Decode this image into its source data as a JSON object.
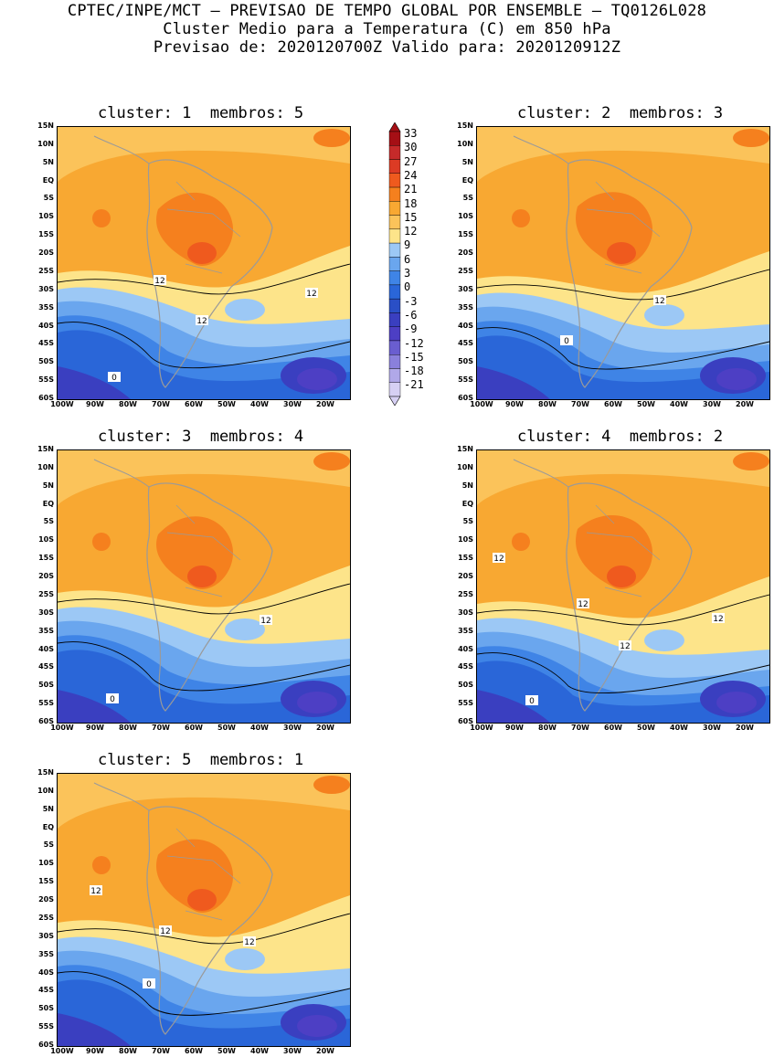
{
  "header": {
    "line1": "CPTEC/INPE/MCT – PREVISAO DE TEMPO GLOBAL POR ENSEMBLE – TQ0126L028",
    "line2": "Cluster Medio para a Temperatura (C) em 850 hPa",
    "line3": "Previsao de: 2020120700Z   Valido para: 2020120912Z"
  },
  "panels": [
    {
      "title": "cluster: 1  membros: 5",
      "contour_labels": [
        "12",
        "12",
        "12",
        "0"
      ]
    },
    {
      "title": "cluster: 2  membros: 3",
      "contour_labels": [
        "12",
        "0"
      ]
    },
    {
      "title": "cluster: 3  membros: 4",
      "contour_labels": [
        "12",
        "0"
      ]
    },
    {
      "title": "cluster: 4  membros: 2",
      "contour_labels": [
        "12",
        "12",
        "12",
        "12",
        "0"
      ]
    },
    {
      "title": "cluster: 5  membros: 1",
      "contour_labels": [
        "12",
        "12",
        "12",
        "0"
      ]
    }
  ],
  "axes": {
    "y_ticks": [
      "15N",
      "10N",
      "5N",
      "EQ",
      "5S",
      "10S",
      "15S",
      "20S",
      "25S",
      "30S",
      "35S",
      "40S",
      "45S",
      "50S",
      "55S",
      "60S"
    ],
    "x_ticks": [
      "100W",
      "90W",
      "80W",
      "70W",
      "60W",
      "50W",
      "40W",
      "30W",
      "20W"
    ]
  },
  "colorbar": {
    "levels": [
      "33",
      "30",
      "27",
      "24",
      "21",
      "18",
      "15",
      "12",
      "9",
      "6",
      "3",
      "0",
      "-3",
      "-6",
      "-9",
      "-12",
      "-15",
      "-18",
      "-21"
    ],
    "colors": [
      "#a50f15",
      "#c62a2a",
      "#dc3b24",
      "#ef5a1e",
      "#f5801e",
      "#f8a832",
      "#fbc35a",
      "#fde48a",
      "#9cc8f5",
      "#6aa6ee",
      "#3f84e6",
      "#2a66d8",
      "#2a4fc6",
      "#3a3fc0",
      "#4d3fc4",
      "#6a5ed0",
      "#8a80dc",
      "#b0a8e8",
      "#d6d0f4"
    ]
  },
  "colors": {
    "ocean_land_outline": "#9a9a9a",
    "contour": "#000000"
  }
}
